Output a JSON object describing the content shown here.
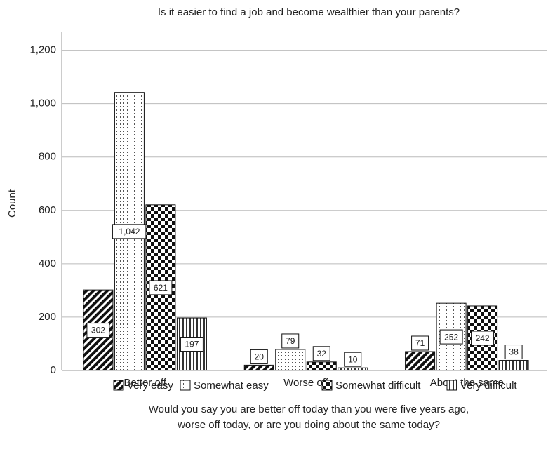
{
  "chart_data": {
    "type": "bar",
    "title": "Is it easier to find a job and become wealthier than your parents?",
    "ylabel": "Count",
    "xlabel": [
      "Would you say you are better off today than you were five years ago,",
      "worse off today, or are you doing about the same today?"
    ],
    "categories": [
      "Better off",
      "Worse off",
      "About the same"
    ],
    "series": [
      {
        "name": "Very easy",
        "color": "#111111",
        "pattern": "diagonal",
        "values": [
          302,
          20,
          71
        ]
      },
      {
        "name": "Somewhat easy",
        "color": "#111111",
        "pattern": "dots",
        "values": [
          1042,
          79,
          252
        ],
        "value_labels": [
          "1,042",
          "79",
          "252"
        ]
      },
      {
        "name": "Somewhat difficult",
        "color": "#111111",
        "pattern": "checker",
        "values": [
          621,
          32,
          242
        ]
      },
      {
        "name": "Very difficult",
        "color": "#111111",
        "pattern": "vertical",
        "values": [
          197,
          10,
          38
        ]
      }
    ],
    "ylim": [
      0,
      1270
    ],
    "yticks": [
      0,
      200,
      400,
      600,
      800,
      {
        "value": 1000,
        "label": "1,000"
      },
      {
        "value": 1200,
        "label": "1,200"
      }
    ],
    "grid": true,
    "legend": "bottom"
  }
}
